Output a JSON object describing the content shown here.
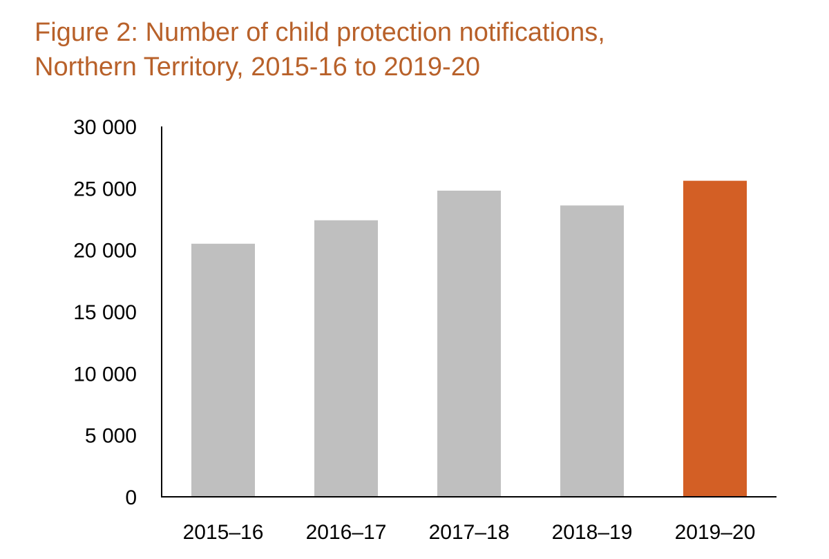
{
  "colors": {
    "title": "#b8612a",
    "bar_default": "#bfbfbf",
    "bar_highlight": "#d35f25",
    "axis": "#000000"
  },
  "chart_data": {
    "type": "bar",
    "title_lines": [
      "Figure 2: Number of child protection notifications,",
      "Northern Territory, 2015-16 to 2019-20"
    ],
    "categories": [
      "2015–16",
      "2016–17",
      "2017–18",
      "2018–19",
      "2019–20"
    ],
    "values": [
      20500,
      22400,
      24800,
      23600,
      25600
    ],
    "highlight_index": 4,
    "ylim": [
      0,
      30000
    ],
    "yticks": [
      0,
      5000,
      10000,
      15000,
      20000,
      25000,
      30000
    ],
    "ytick_labels": [
      "0",
      "5 000",
      "10 000",
      "15 000",
      "20 000",
      "25 000",
      "30 000"
    ],
    "xlabel": "",
    "ylabel": "",
    "grid": false
  }
}
